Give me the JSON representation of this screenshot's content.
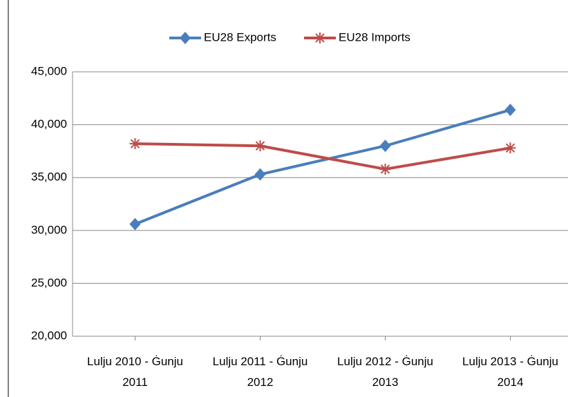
{
  "chart_data": {
    "type": "line",
    "categories": [
      "Lulju 2010 - Ġunju 2011",
      "Lulju 2011 - Ġunju 2012",
      "Lulju 2012 - Ġunju 2013",
      "Lulju 2013 - Ġunju 2014"
    ],
    "series": [
      {
        "name": "EU28 Exports",
        "color": "#4a7ebb",
        "marker": "diamond",
        "values": [
          30600,
          35300,
          38000,
          41400
        ]
      },
      {
        "name": "EU28 Imports",
        "color": "#be4b48",
        "marker": "star",
        "values": [
          38200,
          38000,
          35800,
          37800
        ]
      }
    ],
    "ylim": [
      20000,
      45000
    ],
    "yticks": [
      {
        "value": 20000,
        "label": "20,000"
      },
      {
        "value": 25000,
        "label": "25,000"
      },
      {
        "value": 30000,
        "label": "30,000"
      },
      {
        "value": 35000,
        "label": "35,000"
      },
      {
        "value": 40000,
        "label": "40,000"
      },
      {
        "value": 45000,
        "label": "45,000"
      }
    ],
    "grid": true,
    "legend": "top"
  }
}
